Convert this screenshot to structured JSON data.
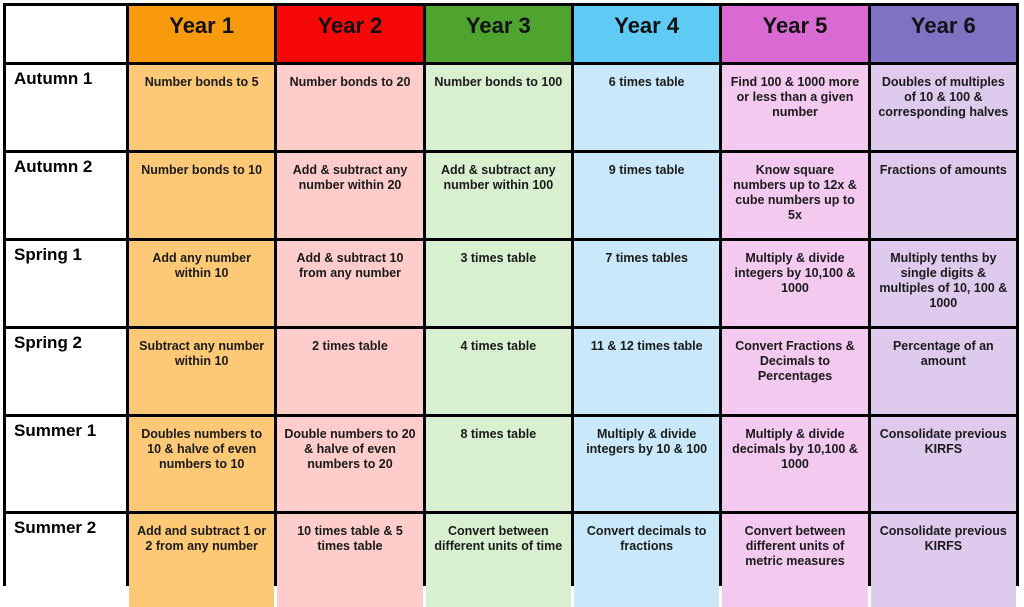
{
  "colors": {
    "year_headers": [
      "#f99a0c",
      "#f70808",
      "#4ea42e",
      "#5fcaf4",
      "#d86ad2",
      "#7f72c2"
    ],
    "year_cells": [
      "#fdc976",
      "#fdcccb",
      "#d9f0d0",
      "#c9e9fa",
      "#f3c9f0",
      "#ddcaec"
    ]
  },
  "years": [
    "Year 1",
    "Year 2",
    "Year 3",
    "Year 4",
    "Year 5",
    "Year 6"
  ],
  "rows": [
    {
      "term": "Autumn 1",
      "cells": [
        "Number bonds to 5",
        "Number bonds to 20",
        "Number bonds to 100",
        "6 times table",
        "Find 100 & 1000 more or less than a given number",
        "Doubles of multiples of 10 & 100 & corresponding halves"
      ]
    },
    {
      "term": "Autumn 2",
      "cells": [
        "Number bonds to 10",
        "Add & subtract any number within 20",
        "Add & subtract any number within 100",
        "9 times table",
        "Know square numbers up to 12x & cube numbers up to 5x",
        "Fractions of amounts"
      ]
    },
    {
      "term": "Spring 1",
      "cells": [
        "Add any number within 10",
        "Add & subtract 10 from any number",
        "3 times table",
        "7 times tables",
        "Multiply & divide integers by 10,100 & 1000",
        "Multiply tenths by single digits & multiples of 10, 100 & 1000"
      ]
    },
    {
      "term": "Spring 2",
      "cells": [
        "Subtract any number within 10",
        "2 times table",
        "4 times table",
        "11 & 12 times table",
        "Convert Fractions & Decimals to Percentages",
        "Percentage of an amount"
      ]
    },
    {
      "term": "Summer 1",
      "cells": [
        "Doubles numbers to 10 & halve of even numbers to 10",
        "Double numbers to 20 & halve of even numbers to 20",
        "8 times table",
        "Multiply & divide integers by 10 & 100",
        "Multiply & divide decimals by 10,100 & 1000",
        "Consolidate previous KIRFS"
      ]
    },
    {
      "term": "Summer 2",
      "cells": [
        "Add and subtract 1 or 2 from any number",
        "10 times table & 5 times table",
        "Convert between different units of time",
        "Convert decimals to fractions",
        "Convert between different units of metric measures",
        "Consolidate previous KIRFS"
      ]
    }
  ]
}
